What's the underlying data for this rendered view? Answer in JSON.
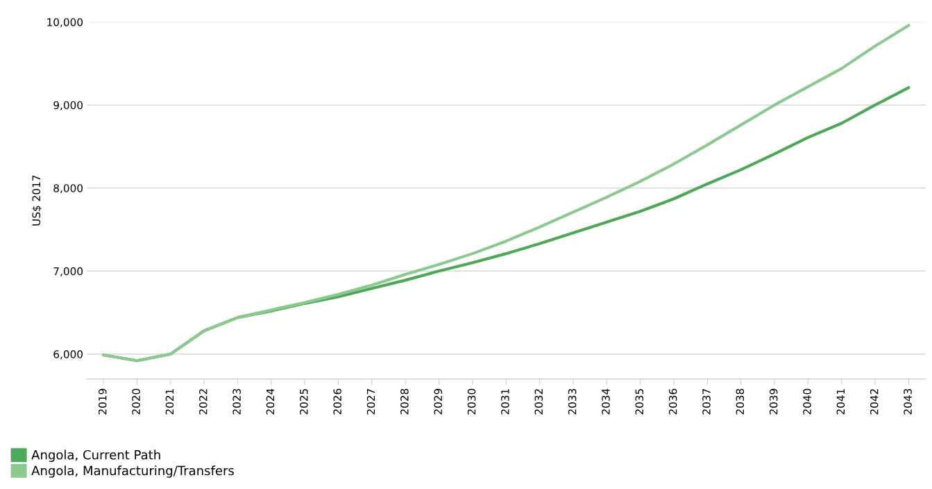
{
  "chart_data": {
    "type": "line",
    "ylabel": "US$ 2017",
    "categories": [
      "2019",
      "2020",
      "2021",
      "2022",
      "2023",
      "2024",
      "2025",
      "2026",
      "2027",
      "2028",
      "2029",
      "2030",
      "2031",
      "2032",
      "2033",
      "2034",
      "2035",
      "2036",
      "2037",
      "2038",
      "2039",
      "2040",
      "2041",
      "2042",
      "2043"
    ],
    "series": [
      {
        "name": "Angola, Current Path",
        "color": "#4ea85a",
        "values": [
          5990,
          5920,
          6000,
          6280,
          6440,
          6520,
          6610,
          6690,
          6790,
          6890,
          7000,
          7100,
          7210,
          7330,
          7460,
          7590,
          7720,
          7870,
          8050,
          8220,
          8410,
          8610,
          8780,
          9000,
          9210
        ]
      },
      {
        "name": "Angola, Manufacturing/Transfers",
        "color": "#8cc98f",
        "values": [
          5990,
          5920,
          6000,
          6280,
          6440,
          6530,
          6620,
          6720,
          6830,
          6960,
          7080,
          7210,
          7360,
          7530,
          7710,
          7890,
          8080,
          8290,
          8520,
          8760,
          9000,
          9220,
          9440,
          9710,
          9960
        ]
      }
    ],
    "ylim": [
      5700,
      10000
    ],
    "yticks": [
      {
        "value": 6000,
        "label": "6,000"
      },
      {
        "value": 7000,
        "label": "7,000"
      },
      {
        "value": 8000,
        "label": "8,000"
      },
      {
        "value": 9000,
        "label": "9,000"
      },
      {
        "value": 10000,
        "label": "10,000"
      }
    ],
    "grid": "y",
    "legend": "bottom left",
    "marker": "none",
    "line_style": "solid"
  }
}
